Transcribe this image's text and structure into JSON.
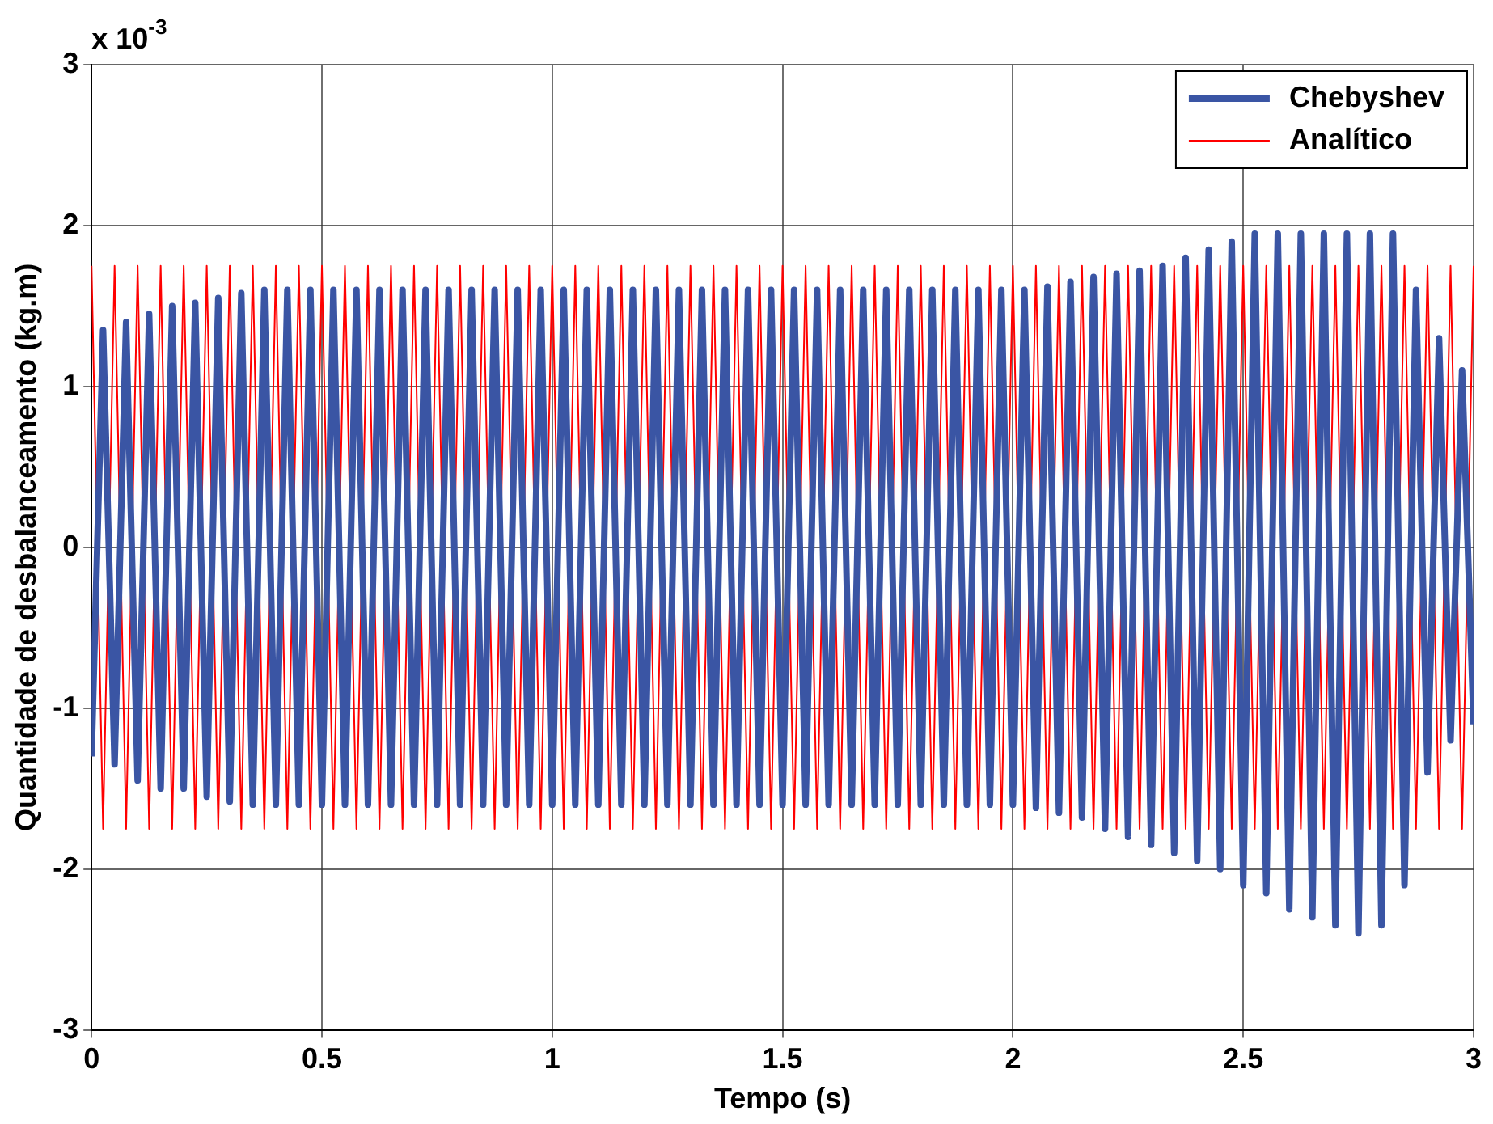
{
  "chart_data": {
    "type": "line",
    "xlabel": "Tempo (s)",
    "ylabel": "Quantidade de desbalanceamento (kg.m)",
    "annotations": [
      "x 10$^{-3}$"
    ],
    "x": [
      0,
      0.025,
      0.05,
      0.075,
      0.1,
      0.125,
      0.15,
      0.175,
      0.2,
      0.225,
      0.25,
      0.275,
      0.3,
      0.325,
      0.35,
      0.375,
      0.4,
      0.425,
      0.45,
      0.475,
      0.5,
      0.525,
      0.55,
      0.575,
      0.6,
      0.625,
      0.65,
      0.675,
      0.7,
      0.725,
      0.75,
      0.775,
      0.8,
      0.825,
      0.85,
      0.875,
      0.9,
      0.925,
      0.95,
      0.975,
      1,
      1.025,
      1.05,
      1.075,
      1.1,
      1.125,
      1.15,
      1.175,
      1.2,
      1.225,
      1.25,
      1.275,
      1.3,
      1.325,
      1.35,
      1.375,
      1.4,
      1.425,
      1.45,
      1.475,
      1.5,
      1.525,
      1.55,
      1.575,
      1.6,
      1.625,
      1.65,
      1.675,
      1.7,
      1.725,
      1.75,
      1.775,
      1.8,
      1.825,
      1.85,
      1.875,
      1.9,
      1.925,
      1.95,
      1.975,
      2,
      2.025,
      2.05,
      2.075,
      2.1,
      2.125,
      2.15,
      2.175,
      2.2,
      2.225,
      2.25,
      2.275,
      2.3,
      2.325,
      2.35,
      2.375,
      2.4,
      2.425,
      2.45,
      2.475,
      2.5,
      2.525,
      2.55,
      2.575,
      2.6,
      2.625,
      2.65,
      2.675,
      2.7,
      2.725,
      2.75,
      2.775,
      2.8,
      2.825,
      2.85,
      2.875,
      2.9,
      2.925,
      2.95,
      2.975,
      3
    ],
    "series": [
      {
        "name": "Chebyshev",
        "color": "#3a55a4",
        "values": [
          -1.3,
          1.35,
          -1.35,
          1.4,
          -1.45,
          1.45,
          -1.5,
          1.5,
          -1.5,
          1.52,
          -1.55,
          1.55,
          -1.58,
          1.58,
          -1.6,
          1.6,
          -1.6,
          1.6,
          -1.6,
          1.6,
          -1.6,
          1.6,
          -1.6,
          1.6,
          -1.6,
          1.6,
          -1.6,
          1.6,
          -1.6,
          1.6,
          -1.6,
          1.6,
          -1.6,
          1.6,
          -1.6,
          1.6,
          -1.6,
          1.6,
          -1.6,
          1.6,
          -1.6,
          1.6,
          -1.6,
          1.6,
          -1.6,
          1.6,
          -1.6,
          1.6,
          -1.6,
          1.6,
          -1.6,
          1.6,
          -1.6,
          1.6,
          -1.6,
          1.6,
          -1.6,
          1.6,
          -1.6,
          1.6,
          -1.6,
          1.6,
          -1.6,
          1.6,
          -1.6,
          1.6,
          -1.6,
          1.6,
          -1.6,
          1.6,
          -1.6,
          1.6,
          -1.6,
          1.6,
          -1.6,
          1.6,
          -1.6,
          1.6,
          -1.6,
          1.6,
          -1.6,
          1.6,
          -1.62,
          1.62,
          -1.65,
          1.65,
          -1.68,
          1.68,
          -1.75,
          1.7,
          -1.8,
          1.72,
          -1.85,
          1.75,
          -1.9,
          1.8,
          -1.95,
          1.85,
          -2.0,
          1.9,
          -2.1,
          1.95,
          -2.15,
          1.95,
          -2.25,
          1.95,
          -2.3,
          1.95,
          -2.35,
          1.95,
          -2.4,
          1.95,
          -2.35,
          1.95,
          -2.1,
          1.6,
          -1.4,
          1.3,
          -1.2,
          1.1,
          -1.1
        ]
      },
      {
        "name": "Analítico",
        "color": "#ff0000",
        "values": [
          1.75,
          -1.75,
          1.75,
          -1.75,
          1.75,
          -1.75,
          1.75,
          -1.75,
          1.75,
          -1.75,
          1.75,
          -1.75,
          1.75,
          -1.75,
          1.75,
          -1.75,
          1.75,
          -1.75,
          1.75,
          -1.75,
          1.75,
          -1.75,
          1.75,
          -1.75,
          1.75,
          -1.75,
          1.75,
          -1.75,
          1.75,
          -1.75,
          1.75,
          -1.75,
          1.75,
          -1.75,
          1.75,
          -1.75,
          1.75,
          -1.75,
          1.75,
          -1.75,
          1.75,
          -1.75,
          1.75,
          -1.75,
          1.75,
          -1.75,
          1.75,
          -1.75,
          1.75,
          -1.75,
          1.75,
          -1.75,
          1.75,
          -1.75,
          1.75,
          -1.75,
          1.75,
          -1.75,
          1.75,
          -1.75,
          1.75,
          -1.75,
          1.75,
          -1.75,
          1.75,
          -1.75,
          1.75,
          -1.75,
          1.75,
          -1.75,
          1.75,
          -1.75,
          1.75,
          -1.75,
          1.75,
          -1.75,
          1.75,
          -1.75,
          1.75,
          -1.75,
          1.75,
          -1.75,
          1.75,
          -1.75,
          1.75,
          -1.75,
          1.75,
          -1.75,
          1.75,
          -1.75,
          1.75,
          -1.75,
          1.75,
          -1.75,
          1.75,
          -1.75,
          1.75,
          -1.75,
          1.75,
          -1.75,
          1.75,
          -1.75,
          1.75,
          -1.75,
          1.75,
          -1.75,
          1.75,
          -1.75,
          1.75,
          -1.75,
          1.75,
          -1.75,
          1.75,
          -1.75,
          1.75,
          -1.75,
          1.75,
          -1.75,
          1.75,
          -1.75,
          1.75
        ]
      }
    ],
    "xlim": [
      0,
      3
    ],
    "xticks": [
      0,
      0.5,
      1,
      1.5,
      2,
      2.5,
      3
    ],
    "ylim": [
      -3,
      3
    ],
    "yticks": [
      -3,
      -2,
      -1,
      0,
      1,
      2,
      3
    ],
    "grid": true,
    "legend": "top right",
    "marker": "none",
    "line_style": "solid"
  }
}
